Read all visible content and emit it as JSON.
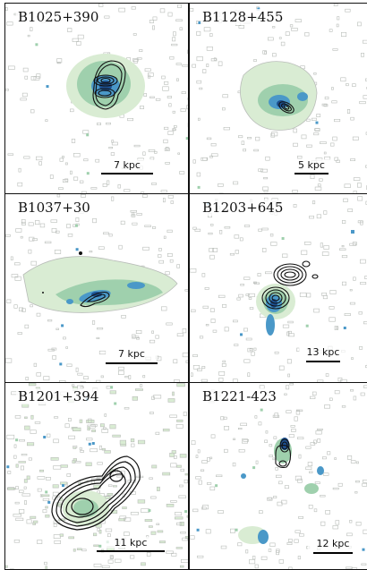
{
  "figure": {
    "panels": [
      {
        "name": "B1025+390",
        "scale": "7 kpc"
      },
      {
        "name": "B1128+455",
        "scale": "5 kpc"
      },
      {
        "name": "B1037+30",
        "scale": "7 kpc"
      },
      {
        "name": "B1203+645",
        "scale": "13 kpc"
      },
      {
        "name": "B1201+394",
        "scale": "11 kpc"
      },
      {
        "name": "B1221-423",
        "scale": "12 kpc"
      }
    ]
  },
  "colors": {
    "noise_contour": "#b9bdb9",
    "faint_emission": "#d9ecd3",
    "mid_emission": "#9fd0ad",
    "bright_emission": "#4a98c8",
    "peak_emission": "#1c4f8f",
    "radio_contour": "#111111"
  }
}
